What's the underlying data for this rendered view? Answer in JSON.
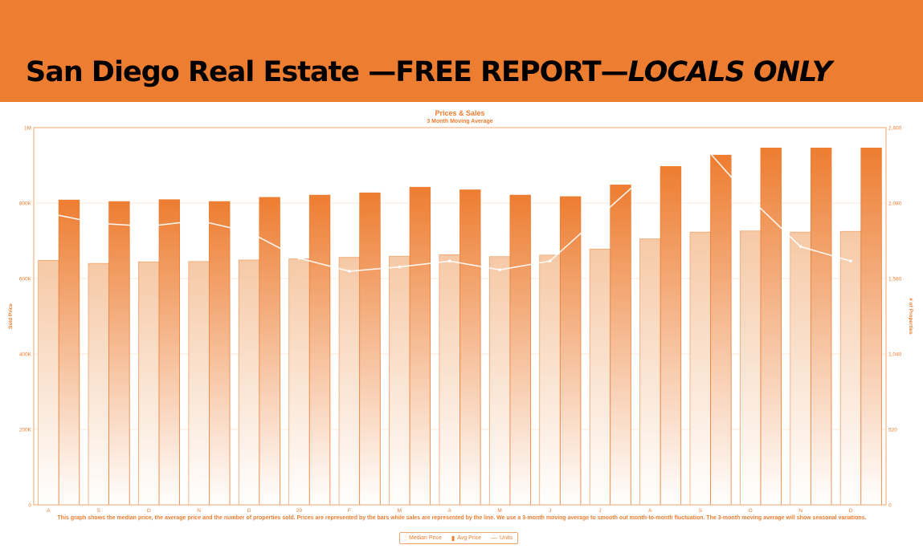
{
  "banner": {
    "title_main": "San Diego Real Estate —FREE REPORT—",
    "title_emphasis": "LOCALS ONLY"
  },
  "colors": {
    "banner": "#ed7d31",
    "accent": "#ed7d31",
    "median_bar": "#f6c9a6",
    "avg_bar": "#ed7d31"
  },
  "chart_data": {
    "type": "bar",
    "title": "Prices & Sales",
    "subtitle": "3 Month Moving Average",
    "ylabel": "Sold Price",
    "y2label": "# of Properties",
    "ylim": [
      0,
      1000000
    ],
    "y2lim": [
      0,
      2600
    ],
    "y_ticks": [
      "0",
      "200K",
      "400K",
      "600K",
      "800K",
      "1M"
    ],
    "y2_ticks": [
      "0",
      "520",
      "1,040",
      "1,560",
      "2,080",
      "2,600"
    ],
    "categories": [
      "A",
      "S",
      "O",
      "N",
      "D",
      "20",
      "F",
      "M",
      "A",
      "M",
      "J",
      "J",
      "A",
      "S",
      "O",
      "N",
      "D"
    ],
    "series": [
      {
        "name": "Median Price",
        "type": "bar",
        "values": [
          648000,
          640000,
          644000,
          645000,
          649000,
          652000,
          656000,
          659000,
          663000,
          658000,
          662000,
          678000,
          705000,
          723000,
          726000,
          723000,
          725000
        ]
      },
      {
        "name": "Avg Price",
        "type": "bar",
        "values": [
          808000,
          804000,
          809000,
          804000,
          815000,
          821000,
          827000,
          842000,
          835000,
          821000,
          817000,
          848000,
          897000,
          927000,
          946000,
          946000,
          946000
        ]
      },
      {
        "name": "Units",
        "type": "line",
        "axis": "y2",
        "values": [
          2010,
          1940,
          1920,
          1960,
          1880,
          1700,
          1610,
          1640,
          1680,
          1620,
          1680,
          1990,
          2300,
          2500,
          2110,
          1780,
          1680
        ]
      }
    ],
    "grid": true,
    "legend_position": "bottom-center",
    "caption": "This graph shows the median price, the average price and the number of properties sold. Prices are represented by the bars while sales are represented by the line. We use a 3-month moving average to smooth out month-to-month fluctuation. The 3-month moving average will show seasonal variations."
  }
}
